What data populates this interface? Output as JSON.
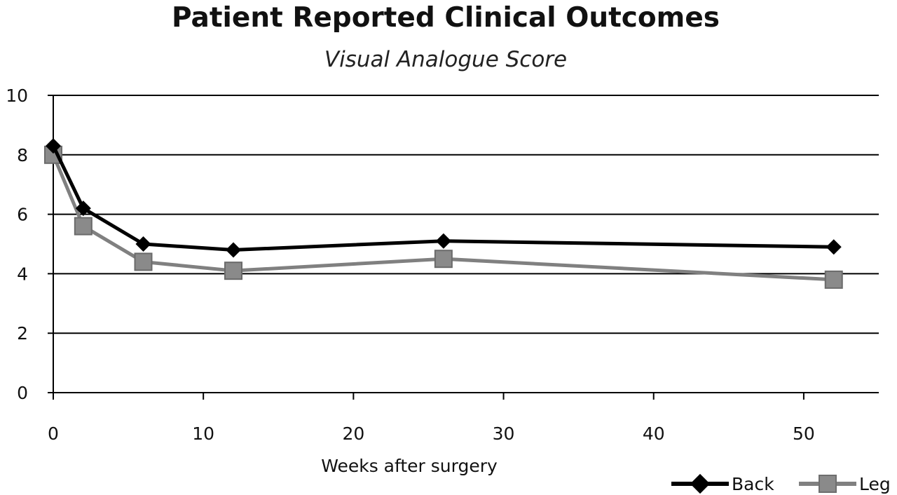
{
  "chart_data": {
    "type": "line",
    "title": "Patient Reported Clinical Outcomes",
    "subtitle": "Visual Analogue Score",
    "xlabel": "Weeks after surgery",
    "ylabel": "",
    "xlim": [
      0,
      55
    ],
    "ylim": [
      0,
      10
    ],
    "x_ticks": [
      0,
      10,
      20,
      30,
      40,
      50
    ],
    "y_ticks": [
      0,
      2,
      4,
      6,
      8,
      10
    ],
    "grid": "horizontal",
    "legend": "bottom-right",
    "x": [
      0,
      2,
      6,
      12,
      26,
      52
    ],
    "series": [
      {
        "name": "Back",
        "values": [
          8.3,
          6.2,
          5.0,
          4.8,
          5.1,
          4.9
        ],
        "color": "#000000",
        "marker": "diamond"
      },
      {
        "name": "Leg",
        "values": [
          8.0,
          5.6,
          4.4,
          4.1,
          4.5,
          3.8
        ],
        "color": "#808080",
        "marker": "square"
      }
    ]
  }
}
